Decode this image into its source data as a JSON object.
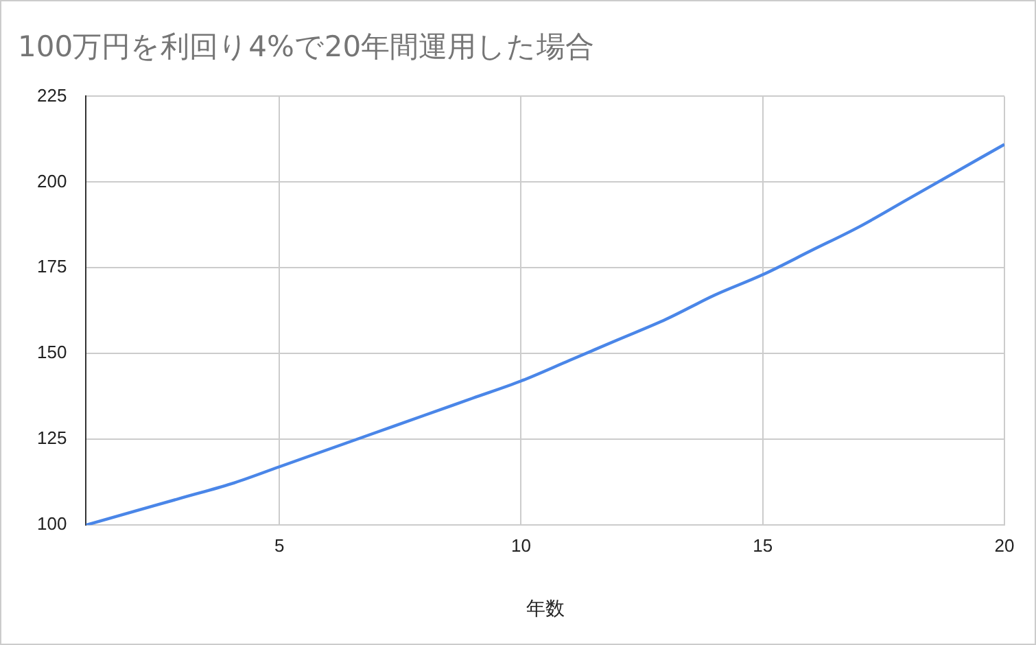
{
  "chart_data": {
    "type": "line",
    "title": "100万円を利回り4%で20年間運用した場合",
    "xlabel": "年数",
    "x": [
      1,
      2,
      3,
      4,
      5,
      6,
      7,
      8,
      9,
      10,
      11,
      12,
      13,
      14,
      15,
      16,
      17,
      18,
      19,
      20
    ],
    "series": [
      {
        "color": "#4a86e8",
        "values": [
          100,
          104,
          108,
          112,
          117,
          122,
          127,
          132,
          137,
          142,
          148,
          154,
          160,
          167,
          173,
          180,
          187,
          195,
          203,
          211
        ]
      }
    ],
    "xlim": [
      1,
      20
    ],
    "xticks": [
      5,
      10,
      15,
      20
    ],
    "ylim": [
      100,
      225
    ],
    "yticks": [
      100,
      125,
      150,
      175,
      200,
      225
    ],
    "grid": true,
    "legend": false,
    "marker": "none",
    "line_style": "solid"
  }
}
